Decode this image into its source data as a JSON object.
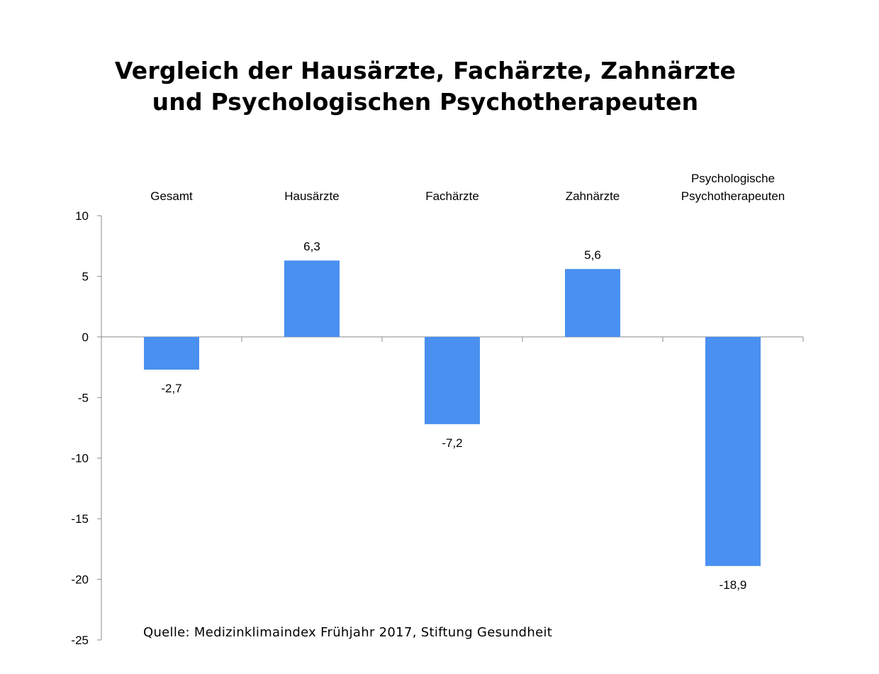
{
  "chart_data": {
    "type": "bar",
    "title_lines": [
      "Vergleich der Hausärzte, Fachärzte, Zahnärzte",
      "und Psychologischen Psychotherapeuten"
    ],
    "categories": [
      [
        "Gesamt"
      ],
      [
        "Hausärzte"
      ],
      [
        "Fachärzte"
      ],
      [
        "Zahnärzte"
      ],
      [
        "Psychologische",
        "Psychotherapeuten"
      ]
    ],
    "values": [
      -2.7,
      6.3,
      -7.2,
      5.6,
      -18.9
    ],
    "value_labels": [
      "-2,7",
      "6,3",
      "-7,2",
      "5,6",
      "-18,9"
    ],
    "ylim": [
      -25,
      10
    ],
    "yticks": [
      10,
      5,
      0,
      -5,
      -10,
      -15,
      -20,
      -25
    ],
    "ytick_labels": [
      "10",
      "5",
      "0",
      "-5",
      "-10",
      "-15",
      "-20",
      "-25"
    ],
    "category_label_position": "top",
    "grid": false,
    "legend": "none",
    "bar_color": "#4a90f0",
    "axis_color": "#8c8c8c",
    "source": "Quelle: Medizinklimaindex Frühjahr 2017, Stiftung Gesundheit"
  }
}
